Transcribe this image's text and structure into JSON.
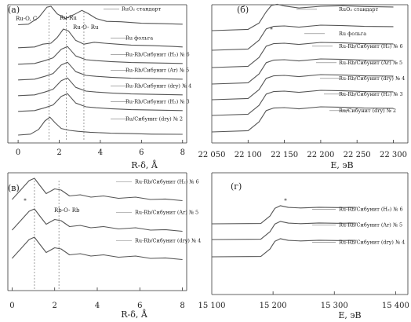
{
  "figure": {
    "panels": [
      "(а)",
      "(б)",
      "(в)",
      "(г)"
    ]
  },
  "chart_data": [
    {
      "panel": "(а)",
      "type": "line",
      "xlabel": "R-δ, Å",
      "xlim": [
        -0.5,
        8.2
      ],
      "xticks": [
        0,
        2,
        4,
        6,
        8
      ],
      "grid": false,
      "annotations": [
        "Ru-O, C",
        "Ru-Ru",
        "Ru-O- Ru"
      ],
      "ref_lines": [
        1.5,
        2.35,
        3.2
      ],
      "series": [
        {
          "name": "RuO₂ стандарт",
          "x": [
            0,
            0.5,
            1.0,
            1.4,
            1.6,
            1.9,
            2.3,
            2.7,
            3.1,
            3.4,
            3.8,
            4.3,
            5.0,
            6.0,
            7.0,
            8.0
          ],
          "values": [
            0.02,
            0.05,
            0.4,
            0.95,
            1.0,
            0.6,
            0.35,
            0.55,
            0.78,
            0.62,
            0.35,
            0.2,
            0.18,
            0.1,
            0.08,
            0.05
          ]
        },
        {
          "name": "Ru фольга",
          "x": [
            0,
            0.8,
            1.2,
            1.6,
            1.9,
            2.2,
            2.45,
            2.8,
            3.2,
            3.7,
            4.2,
            4.8,
            5.5,
            6.5,
            7.5,
            8.0
          ],
          "values": [
            0.01,
            0.05,
            0.2,
            0.25,
            0.55,
            1.0,
            0.9,
            0.4,
            0.2,
            0.3,
            0.25,
            0.2,
            0.15,
            0.12,
            0.08,
            0.05
          ]
        },
        {
          "name": "Ru-Rb/Сибунит (H₂) № 6",
          "x": [
            0,
            0.8,
            1.3,
            1.7,
            2.1,
            2.4,
            2.8,
            3.3,
            3.8,
            4.5,
            5.5,
            6.5,
            8.0
          ],
          "values": [
            0.01,
            0.05,
            0.2,
            0.35,
            0.8,
            0.95,
            0.45,
            0.25,
            0.2,
            0.15,
            0.1,
            0.08,
            0.05
          ]
        },
        {
          "name": "Ru-Rb/Сибунит (Ar) № 5",
          "x": [
            0,
            0.8,
            1.3,
            1.7,
            2.1,
            2.4,
            2.8,
            3.3,
            3.8,
            4.5,
            5.5,
            6.5,
            8.0
          ],
          "values": [
            0.01,
            0.05,
            0.2,
            0.35,
            0.8,
            0.95,
            0.45,
            0.25,
            0.2,
            0.15,
            0.1,
            0.08,
            0.05
          ]
        },
        {
          "name": "Ru-Rb/Сибунит (dry) № 4",
          "x": [
            0,
            0.8,
            1.3,
            1.7,
            2.1,
            2.4,
            2.8,
            3.3,
            3.8,
            4.5,
            5.5,
            6.5,
            8.0
          ],
          "values": [
            0.01,
            0.05,
            0.2,
            0.35,
            0.8,
            0.95,
            0.45,
            0.25,
            0.2,
            0.15,
            0.1,
            0.08,
            0.05
          ]
        },
        {
          "name": "Ru-Rb/Сибунит (H₂) № 3",
          "x": [
            0,
            0.8,
            1.3,
            1.7,
            2.1,
            2.4,
            2.8,
            3.3,
            3.8,
            4.5,
            5.5,
            6.5,
            8.0
          ],
          "values": [
            0.01,
            0.05,
            0.2,
            0.35,
            0.8,
            0.95,
            0.45,
            0.25,
            0.2,
            0.15,
            0.1,
            0.08,
            0.05
          ]
        },
        {
          "name": "Ru/Сибунит (dry) № 2",
          "x": [
            0,
            0.6,
            1.0,
            1.3,
            1.55,
            1.8,
            2.1,
            2.5,
            2.9,
            3.5,
            4.5,
            5.5,
            6.5,
            8.0
          ],
          "values": [
            0.0,
            0.05,
            0.3,
            0.75,
            0.95,
            0.65,
            0.35,
            0.25,
            0.2,
            0.15,
            0.1,
            0.08,
            0.05,
            0.04
          ]
        }
      ]
    },
    {
      "panel": "(б)",
      "type": "line",
      "xlabel": "E, эВ",
      "xlim": [
        22050,
        22320
      ],
      "xticks": [
        22050,
        22100,
        22150,
        22200,
        22250,
        22300
      ],
      "tick_labels": [
        "22 050",
        "22 100",
        "22 150",
        "22 200",
        "22 250",
        "22 300"
      ],
      "grid": false,
      "annotations": [
        "*"
      ],
      "series": [
        {
          "name": "RuO₂ стандарт",
          "x": [
            22050,
            22100,
            22115,
            22125,
            22132,
            22140,
            22150,
            22170,
            22200,
            22230,
            22260,
            22300
          ],
          "values": [
            0.0,
            0.05,
            0.3,
            0.75,
            1.0,
            1.05,
            0.98,
            0.9,
            0.97,
            0.99,
            0.96,
            0.94
          ]
        },
        {
          "name": "Ru фольга",
          "x": [
            22050,
            22100,
            22115,
            22125,
            22135,
            22150,
            22170,
            22200,
            22230,
            22260,
            22300
          ],
          "values": [
            0.0,
            0.05,
            0.4,
            0.85,
            0.95,
            0.97,
            0.92,
            1.0,
            0.98,
            0.95,
            0.94
          ]
        },
        {
          "name": "Ru-Rb/Сибунит (H₂) № 6",
          "x": [
            22050,
            22100,
            22115,
            22125,
            22135,
            22150,
            22170,
            22200,
            22230,
            22260,
            22300
          ],
          "values": [
            0.0,
            0.05,
            0.4,
            0.85,
            0.95,
            0.97,
            0.92,
            1.0,
            0.98,
            0.95,
            0.94
          ]
        },
        {
          "name": "Ru-Rb/Сибунит (Ar) № 5",
          "x": [
            22050,
            22100,
            22115,
            22125,
            22135,
            22150,
            22170,
            22200,
            22230,
            22260,
            22300
          ],
          "values": [
            0.0,
            0.05,
            0.4,
            0.85,
            0.95,
            0.97,
            0.92,
            1.0,
            0.98,
            0.95,
            0.94
          ]
        },
        {
          "name": "Ru-Rb/Сибунит (dry) № 4",
          "x": [
            22050,
            22100,
            22115,
            22125,
            22135,
            22150,
            22170,
            22200,
            22230,
            22260,
            22300
          ],
          "values": [
            0.0,
            0.05,
            0.4,
            0.85,
            0.95,
            0.97,
            0.92,
            1.0,
            0.98,
            0.95,
            0.94
          ]
        },
        {
          "name": "Ru-Rb/Сибунит (H₂) № 3",
          "x": [
            22050,
            22100,
            22115,
            22125,
            22135,
            22150,
            22170,
            22200,
            22230,
            22260,
            22300
          ],
          "values": [
            0.0,
            0.05,
            0.4,
            0.85,
            0.95,
            0.97,
            0.92,
            1.0,
            0.98,
            0.95,
            0.94
          ]
        },
        {
          "name": "Ru/Сибунит (dry) № 2",
          "x": [
            22050,
            22100,
            22115,
            22125,
            22135,
            22150,
            22170,
            22200,
            22230,
            22260,
            22300
          ],
          "values": [
            0.0,
            0.05,
            0.4,
            0.85,
            0.95,
            0.97,
            0.92,
            1.0,
            0.98,
            0.95,
            0.94
          ]
        }
      ]
    },
    {
      "panel": "(в)",
      "type": "line",
      "xlabel": "R-δ, Å",
      "xlim": [
        -0.2,
        8.2
      ],
      "xticks": [
        0,
        2,
        4,
        6,
        8
      ],
      "grid": false,
      "annotations": [
        "*",
        "Rb-O- Rb"
      ],
      "ref_lines": [
        1.05,
        2.2
      ],
      "series": [
        {
          "name": "Ru-Rb/Сибунит (H₂) № 6",
          "x": [
            0,
            0.4,
            0.8,
            1.05,
            1.3,
            1.6,
            2.0,
            2.3,
            2.7,
            3.2,
            3.7,
            4.3,
            5.0,
            5.8,
            6.5,
            7.2,
            8.0
          ],
          "values": [
            0.1,
            0.5,
            0.9,
            1.0,
            0.7,
            0.35,
            0.55,
            0.5,
            0.25,
            0.3,
            0.2,
            0.25,
            0.15,
            0.2,
            0.1,
            0.12,
            0.05
          ]
        },
        {
          "name": "Ru-Rb/Сибунит (Ar) № 5",
          "x": [
            0,
            0.4,
            0.8,
            1.05,
            1.3,
            1.6,
            2.0,
            2.3,
            2.7,
            3.2,
            3.7,
            4.3,
            5.0,
            5.8,
            6.5,
            7.2,
            8.0
          ],
          "values": [
            0.1,
            0.5,
            0.9,
            1.0,
            0.7,
            0.35,
            0.55,
            0.5,
            0.25,
            0.3,
            0.2,
            0.25,
            0.15,
            0.2,
            0.1,
            0.12,
            0.05
          ]
        },
        {
          "name": "Ru-Rb/Сибунит (dry) № 4",
          "x": [
            0,
            0.4,
            0.8,
            1.05,
            1.3,
            1.6,
            2.0,
            2.3,
            2.7,
            3.2,
            3.7,
            4.3,
            5.0,
            5.8,
            6.5,
            7.2,
            8.0
          ],
          "values": [
            0.1,
            0.5,
            0.9,
            1.0,
            0.7,
            0.35,
            0.55,
            0.5,
            0.25,
            0.3,
            0.2,
            0.25,
            0.15,
            0.2,
            0.1,
            0.12,
            0.05
          ]
        }
      ]
    },
    {
      "panel": "(г)",
      "type": "line",
      "xlabel": "E, эВ",
      "xlim": [
        15100,
        15420
      ],
      "xticks": [
        15100,
        15200,
        15300,
        15400
      ],
      "tick_labels": [
        "15 100",
        "15 200",
        "15 300",
        "15 400"
      ],
      "grid": false,
      "annotations": [
        "*"
      ],
      "series": [
        {
          "name": "Ru-Rb/Сибунит (H₂) № 6",
          "x": [
            15100,
            15180,
            15195,
            15203,
            15212,
            15225,
            15245,
            15275,
            15305,
            15335
          ],
          "values": [
            0.0,
            0.02,
            0.45,
            0.9,
            1.05,
            0.95,
            0.92,
            0.96,
            0.94,
            0.95
          ]
        },
        {
          "name": "Ru-Rb/Сибунит (Ar) № 5",
          "x": [
            15100,
            15180,
            15195,
            15203,
            15212,
            15225,
            15245,
            15275,
            15305,
            15335
          ],
          "values": [
            0.0,
            0.02,
            0.45,
            0.9,
            1.05,
            0.95,
            0.92,
            0.96,
            0.94,
            0.95
          ]
        },
        {
          "name": "Ru-Rb/Сибунит (dry) № 4",
          "x": [
            15100,
            15180,
            15195,
            15203,
            15212,
            15225,
            15245,
            15275,
            15305,
            15335
          ],
          "values": [
            0.0,
            0.02,
            0.45,
            0.9,
            1.05,
            0.95,
            0.92,
            0.96,
            0.94,
            0.95
          ]
        }
      ]
    }
  ]
}
